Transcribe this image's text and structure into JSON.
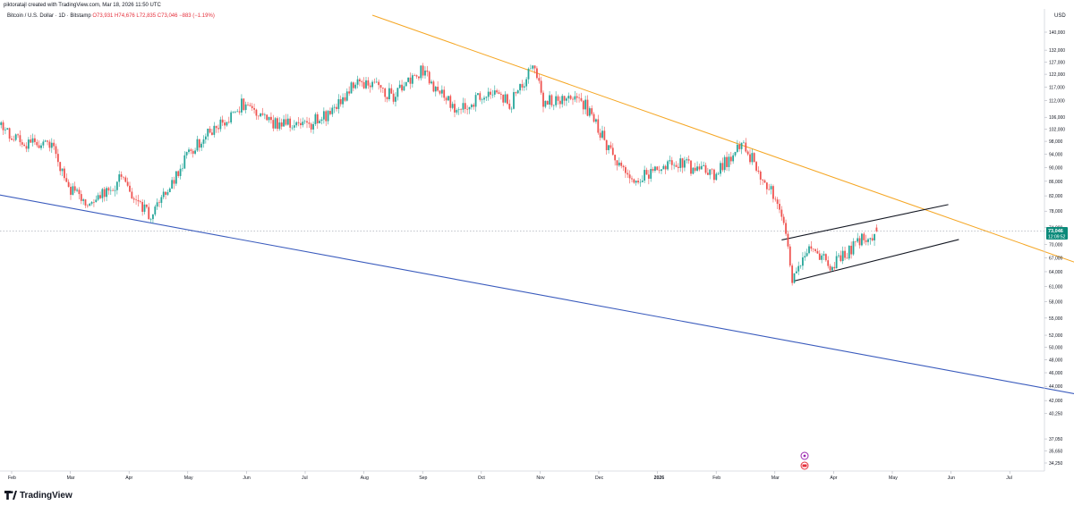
{
  "header": {
    "created_note": "piktoratajl created with TradingView.com, Mar 18, 2026 11:50 UTC",
    "symbol": "Bitcoin / U.S. Dollar · 1D · Bitstamp",
    "ohlc": "O73,931 H74,676 L72,835 C73,046 −883 (−1.19%)"
  },
  "footer": {
    "brand": "TradingView"
  },
  "price_scale": {
    "currency": "USD",
    "last_price": "73,046",
    "countdown": "12:09:52"
  },
  "colors": {
    "up": "#26a69a",
    "down": "#ef5350",
    "orange_line": "#f5a623",
    "blue_line": "#3a5bbd",
    "channel": "#131722",
    "last_price": "#0b8a7a",
    "event_marker": "#9c27b0",
    "flag_marker": "#e5303c"
  },
  "chart_data": {
    "type": "candlestick",
    "y_scale": "log",
    "x_labels": [
      "Feb",
      "Mar",
      "Apr",
      "May",
      "Jun",
      "Jul",
      "Aug",
      "Sep",
      "Oct",
      "Nov",
      "Dec",
      "2026",
      "Feb",
      "Mar",
      "Apr",
      "May",
      "Jun",
      "Jul"
    ],
    "y_ticks": [
      "140,000",
      "132,000",
      "127,000",
      "122,000",
      "117,000",
      "112,000",
      "106,000",
      "102,000",
      "98,000",
      "94,000",
      "90,000",
      "86,000",
      "82,000",
      "78,000",
      "74,000",
      "70,000",
      "67,000",
      "64,000",
      "61,000",
      "58,000",
      "55,000",
      "52,000",
      "50,000",
      "48,000",
      "46,000",
      "44,000",
      "42,000",
      "40,250",
      "37,050",
      "35,650",
      "34,250"
    ],
    "price_path": [
      {
        "date": "2025-01-25",
        "price": 104000
      },
      {
        "date": "2025-02-05",
        "price": 98000
      },
      {
        "date": "2025-02-20",
        "price": 96000
      },
      {
        "date": "2025-03-01",
        "price": 84000
      },
      {
        "date": "2025-03-10",
        "price": 79000
      },
      {
        "date": "2025-03-25",
        "price": 87000
      },
      {
        "date": "2025-04-08",
        "price": 76000
      },
      {
        "date": "2025-04-25",
        "price": 94000
      },
      {
        "date": "2025-05-10",
        "price": 103000
      },
      {
        "date": "2025-05-22",
        "price": 111000
      },
      {
        "date": "2025-06-05",
        "price": 104000
      },
      {
        "date": "2025-06-20",
        "price": 103000
      },
      {
        "date": "2025-07-05",
        "price": 109000
      },
      {
        "date": "2025-07-14",
        "price": 120000
      },
      {
        "date": "2025-08-01",
        "price": 114000
      },
      {
        "date": "2025-08-14",
        "price": 123000
      },
      {
        "date": "2025-09-01",
        "price": 108000
      },
      {
        "date": "2025-09-18",
        "price": 117000
      },
      {
        "date": "2025-09-25",
        "price": 110000
      },
      {
        "date": "2025-10-06",
        "price": 125000
      },
      {
        "date": "2025-10-11",
        "price": 112000
      },
      {
        "date": "2025-10-28",
        "price": 114000
      },
      {
        "date": "2025-11-21",
        "price": 85000
      },
      {
        "date": "2025-12-10",
        "price": 92000
      },
      {
        "date": "2025-12-31",
        "price": 88000
      },
      {
        "date": "2026-01-14",
        "price": 97000
      },
      {
        "date": "2026-02-01",
        "price": 78000
      },
      {
        "date": "2026-02-06",
        "price": 63000
      },
      {
        "date": "2026-02-15",
        "price": 69000
      },
      {
        "date": "2026-02-25",
        "price": 65000
      },
      {
        "date": "2026-03-10",
        "price": 71000
      },
      {
        "date": "2026-03-18",
        "price": 73046
      }
    ],
    "trendlines": [
      {
        "name": "orange resistance",
        "from": {
          "date": "2025-07-22",
          "price": 148000
        },
        "to": {
          "date": "2026-08-01",
          "price": 59600
        }
      },
      {
        "name": "blue support",
        "from": {
          "date": "2025-01-20",
          "price": 82900
        },
        "to": {
          "date": "2026-08-01",
          "price": 40700
        }
      },
      {
        "name": "channel upper",
        "from": {
          "date": "2026-02-01",
          "price": 71000
        },
        "to": {
          "date": "2026-04-21",
          "price": 79700
        }
      },
      {
        "name": "channel lower",
        "from": {
          "date": "2026-02-07",
          "price": 62100
        },
        "to": {
          "date": "2026-04-26",
          "price": 71100
        }
      }
    ]
  }
}
